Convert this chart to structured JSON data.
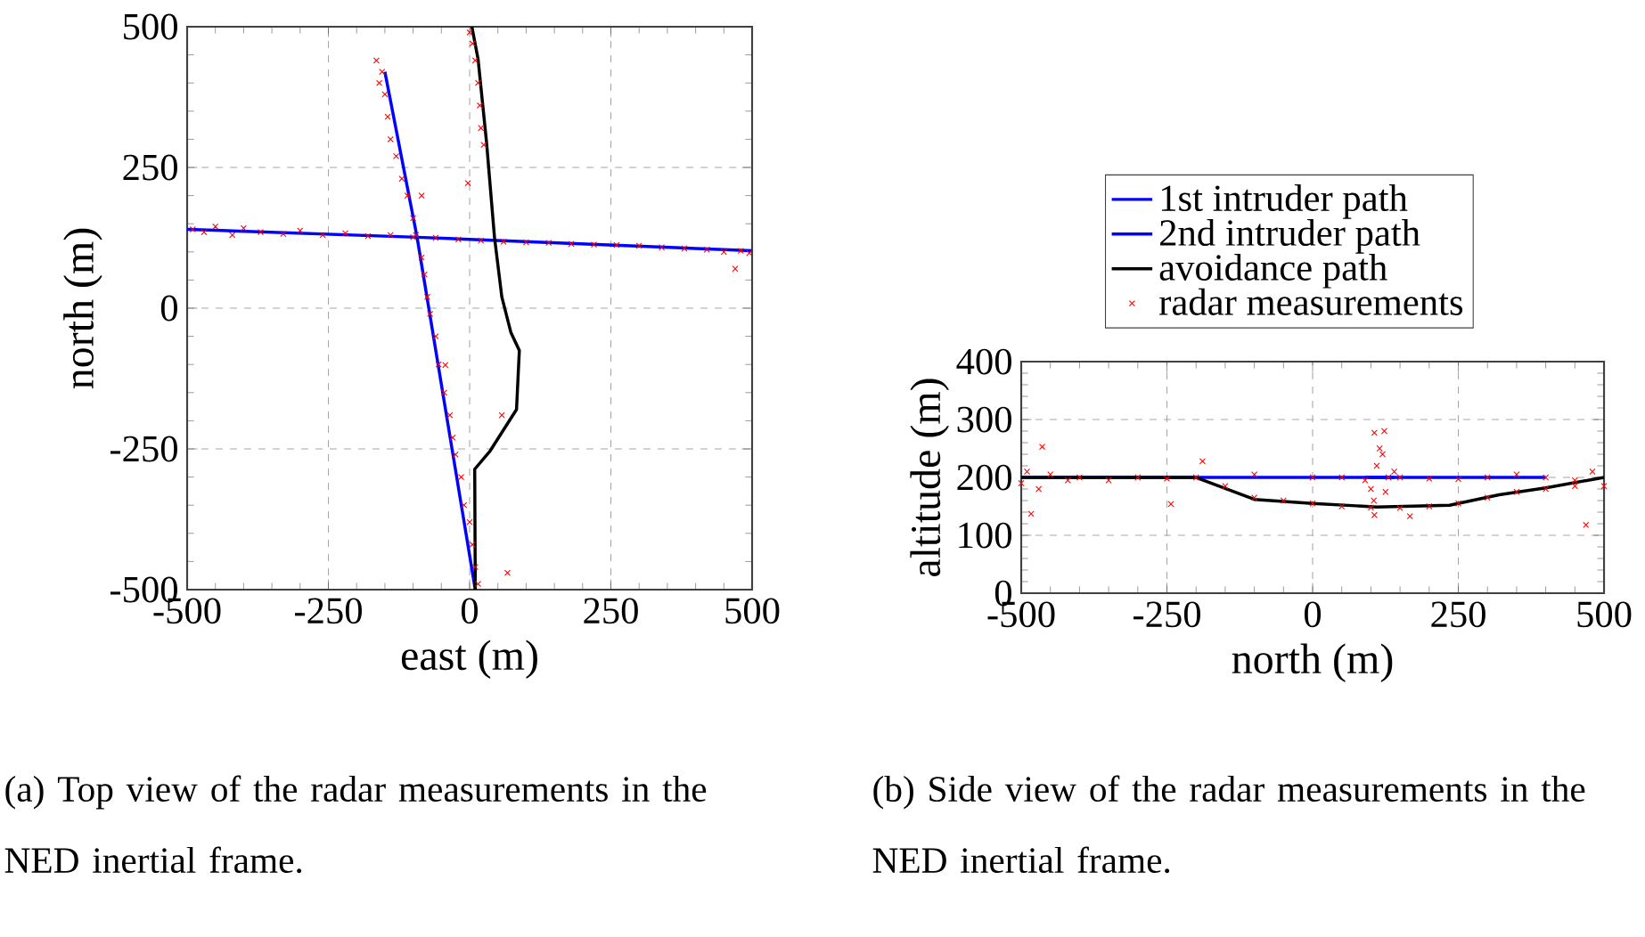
{
  "chart_data": [
    {
      "type": "line",
      "xlabel": "east (m)",
      "ylabel": "north (m)",
      "xlim": [
        -500,
        500
      ],
      "ylim": [
        -500,
        500
      ],
      "xticks": [
        -500,
        -250,
        0,
        250,
        500
      ],
      "yticks": [
        -500,
        -250,
        0,
        250,
        500
      ],
      "grid": true,
      "annotations": [
        "(a) Top view of the radar measurements in the NED inertial frame."
      ],
      "series": [
        {
          "color": "#0000ff",
          "x": [
            -500,
            -93,
            500
          ],
          "values": [
            140,
            126,
            102
          ]
        },
        {
          "color": "#0000ff",
          "x": [
            -150,
            -93,
            10
          ],
          "values": [
            420,
            126,
            -500
          ]
        },
        {
          "color": "#000000",
          "x": [
            10,
            9,
            36,
            83,
            88,
            73,
            57,
            44,
            30,
            15,
            4
          ],
          "values": [
            -500,
            -286,
            -254,
            -180,
            -75,
            -43,
            20,
            126,
            294,
            442,
            500
          ]
        },
        {
          "type": "scatter",
          "marker": "cross",
          "color": "#ff0000",
          "x": [
            -490,
            -470,
            -450,
            -420,
            -400,
            -370,
            -330,
            -300,
            -260,
            -220,
            -180,
            -140,
            -100,
            -60,
            -20,
            20,
            60,
            100,
            140,
            180,
            220,
            260,
            300,
            340,
            380,
            420,
            450,
            480,
            495,
            470,
            -165,
            -155,
            -160,
            -150,
            -145,
            -140,
            -130,
            -120,
            -110,
            -100,
            -95,
            -85,
            -80,
            -75,
            -70,
            -60,
            -55,
            -45,
            -35,
            -30,
            -25,
            -15,
            -10,
            0,
            5,
            10,
            15,
            -85,
            67,
            57,
            -43,
            0,
            5,
            10,
            15,
            18,
            20,
            25,
            -3
          ],
          "values": [
            140,
            135,
            145,
            130,
            142,
            135,
            132,
            138,
            130,
            133,
            128,
            130,
            126,
            125,
            122,
            120,
            118,
            117,
            116,
            114,
            113,
            112,
            111,
            108,
            106,
            104,
            100,
            102,
            98,
            70,
            440,
            420,
            400,
            380,
            340,
            300,
            270,
            230,
            200,
            160,
            130,
            90,
            60,
            20,
            -10,
            -50,
            -100,
            -150,
            -190,
            -230,
            -260,
            -300,
            -350,
            -380,
            -420,
            -460,
            -490,
            200,
            -470,
            -190,
            -101,
            490,
            470,
            440,
            400,
            360,
            320,
            290,
            222
          ]
        }
      ]
    },
    {
      "type": "line",
      "xlabel": "north (m)",
      "ylabel": "altitude (m)",
      "xlim": [
        -500,
        500
      ],
      "ylim": [
        0,
        400
      ],
      "xticks": [
        -500,
        -250,
        0,
        250,
        500
      ],
      "yticks": [
        0,
        100,
        200,
        300,
        400
      ],
      "grid": true,
      "legend": "top",
      "annotations": [
        "(b) Side view of the radar measurements in the NED inertial frame."
      ],
      "series": [
        {
          "name": "1st intruder path",
          "color": "#0000ff",
          "x": [
            90,
            140
          ],
          "values": [
            200,
            200
          ]
        },
        {
          "name": "2nd intruder path",
          "color": "#0000ff",
          "x": [
            -500,
            400
          ],
          "values": [
            200,
            200
          ]
        },
        {
          "name": "avoidance path",
          "color": "#000000",
          "x": [
            -500,
            -200,
            -100,
            0,
            110,
            235,
            320,
            400,
            500
          ],
          "values": [
            200,
            200,
            162,
            155,
            149,
            152,
            170,
            182,
            200
          ]
        },
        {
          "type": "scatter",
          "name": "radar measurements",
          "marker": "cross",
          "color": "#ff0000",
          "x": [
            -500,
            -490,
            -470,
            -450,
            -420,
            -400,
            -350,
            -300,
            -250,
            -200,
            -100,
            0,
            50,
            150,
            200,
            250,
            300,
            350,
            400,
            450,
            480,
            500,
            -150,
            -100,
            -50,
            0,
            50,
            100,
            150,
            200,
            250,
            300,
            350,
            400,
            450,
            100,
            110,
            120,
            130,
            105,
            125,
            140,
            115,
            90,
            -464,
            -483,
            -243,
            -189,
            106,
            123,
            106,
            167,
            469
          ],
          "values": [
            190,
            210,
            180,
            205,
            195,
            200,
            195,
            200,
            198,
            200,
            205,
            200,
            200,
            200,
            198,
            197,
            200,
            205,
            200,
            195,
            210,
            185,
            185,
            165,
            160,
            155,
            150,
            148,
            147,
            150,
            155,
            165,
            175,
            180,
            185,
            180,
            220,
            240,
            200,
            160,
            175,
            210,
            250,
            195,
            253,
            137,
            154,
            228,
            277,
            280,
            135,
            133,
            118
          ]
        }
      ]
    }
  ]
}
